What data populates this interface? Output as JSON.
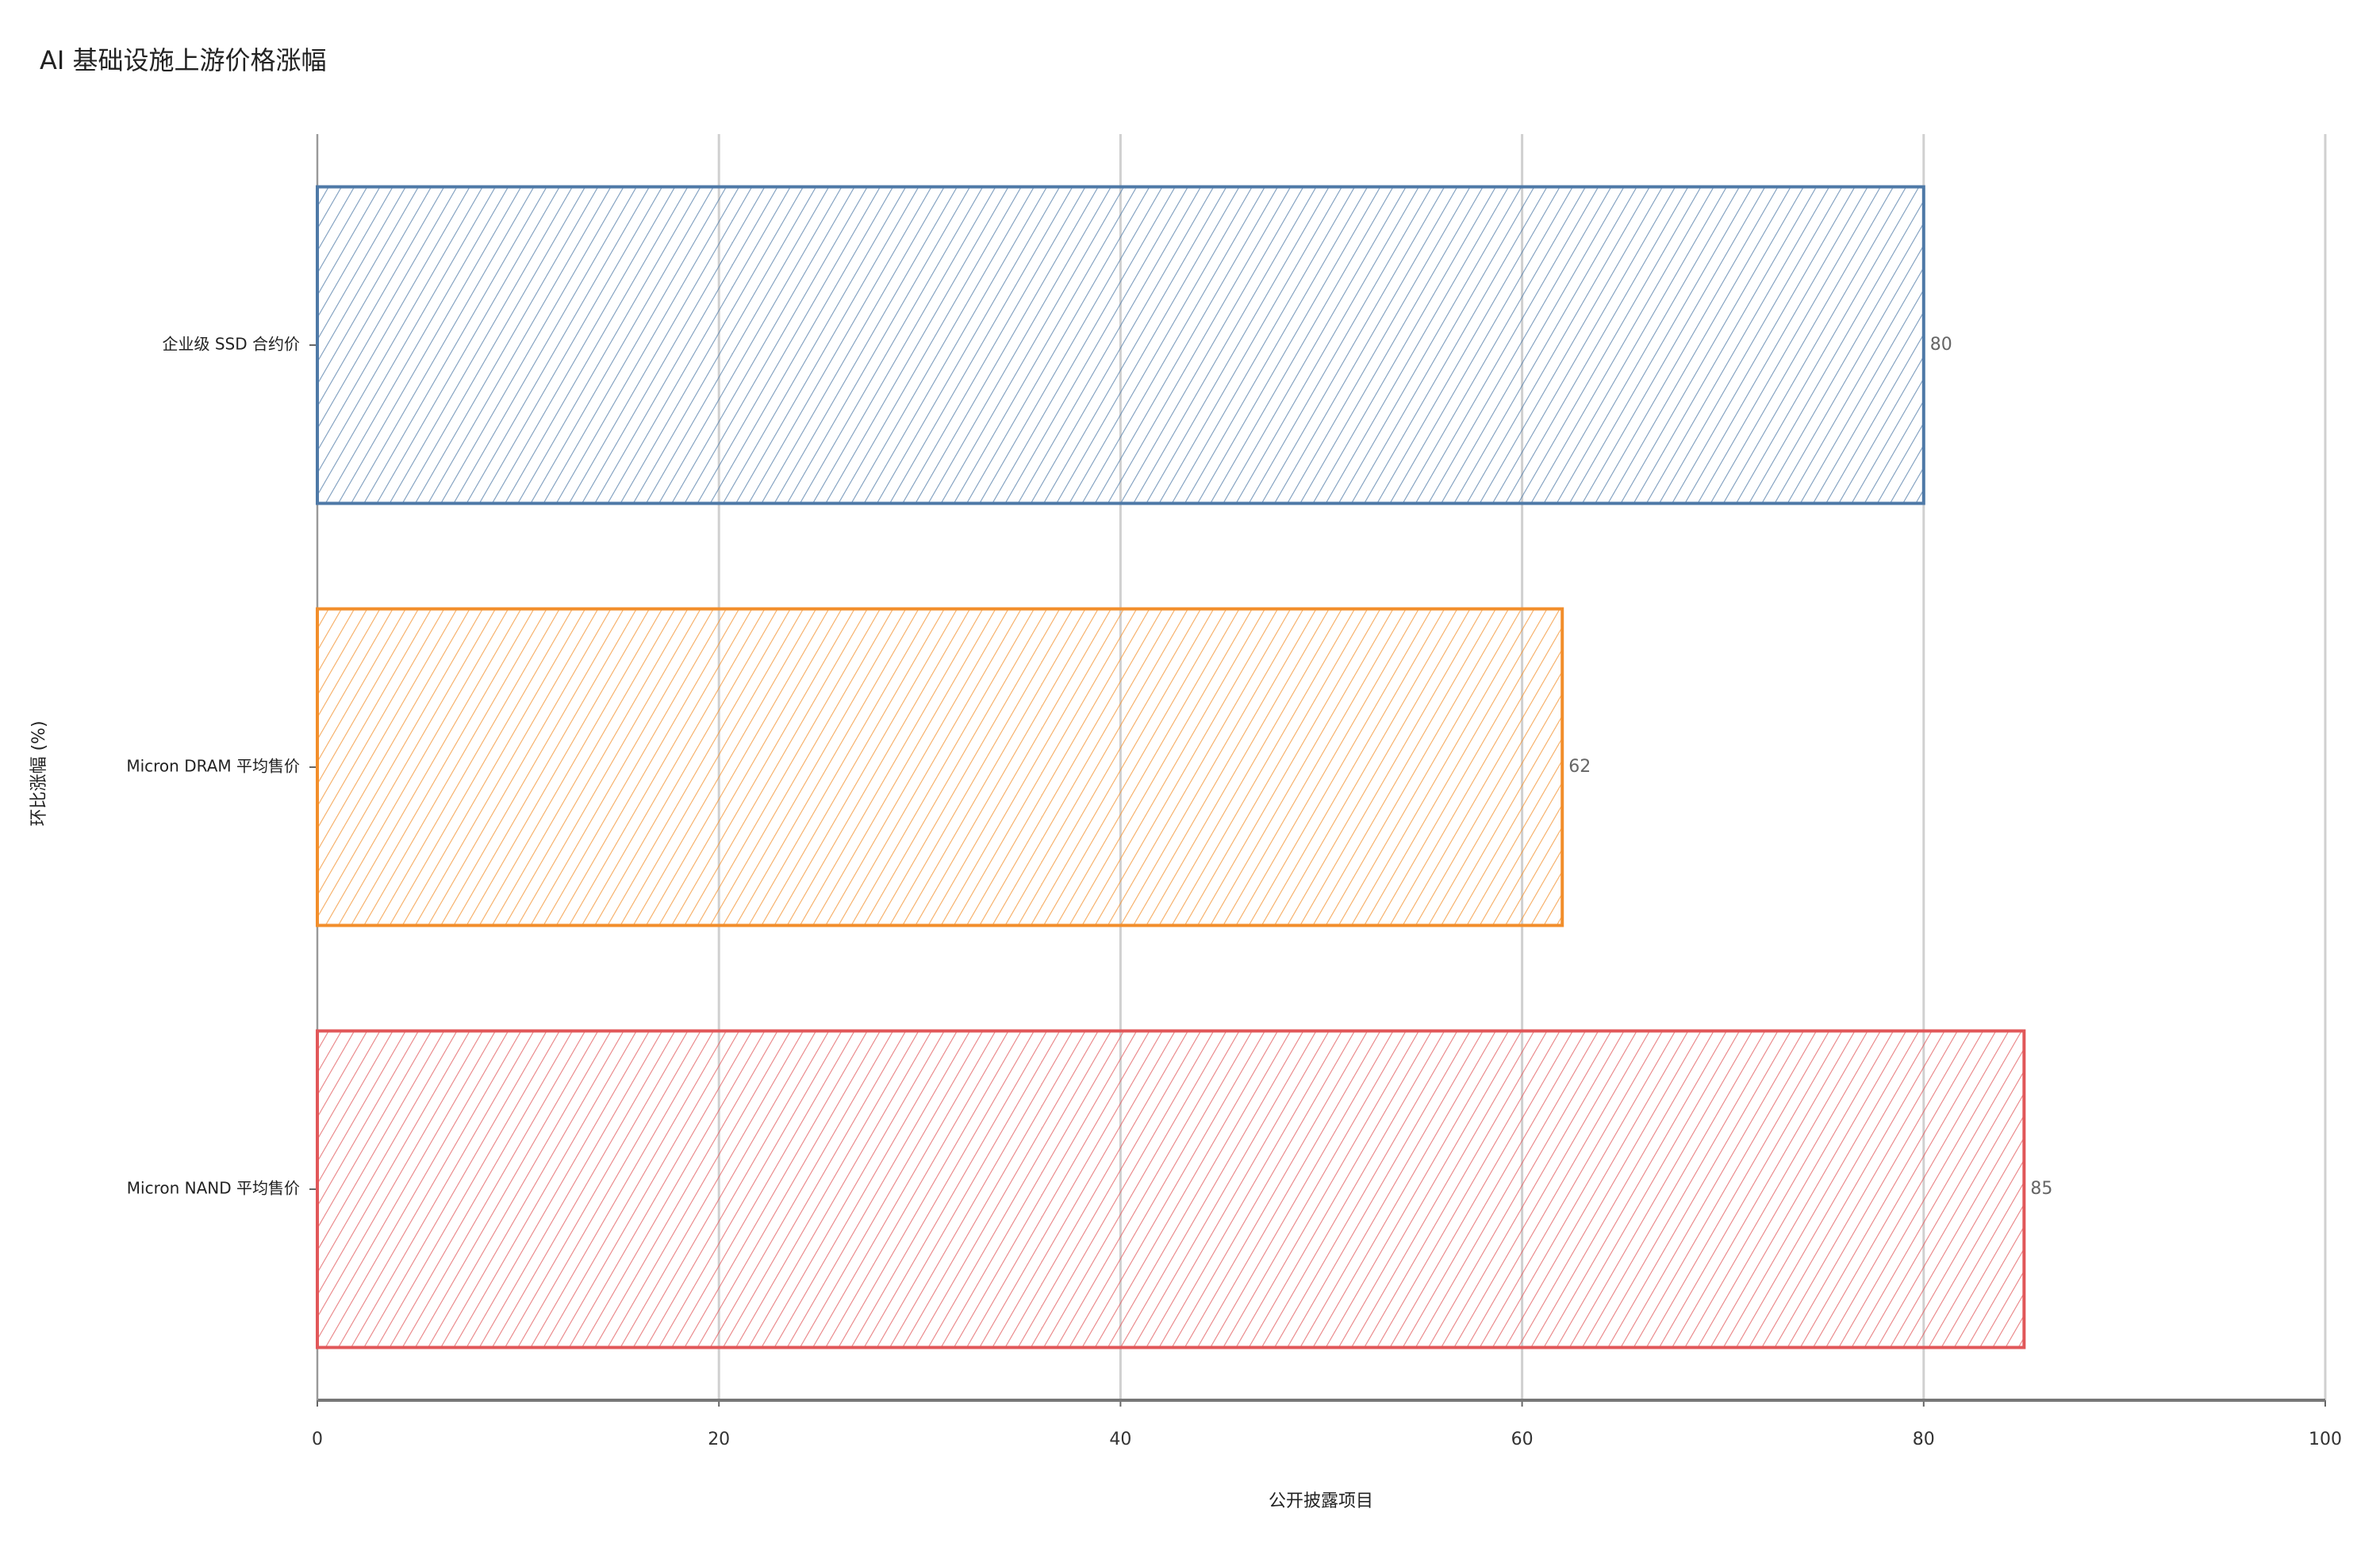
{
  "chart_data": {
    "type": "bar",
    "orientation": "horizontal",
    "title": "AI 基础设施上游价格涨幅",
    "x_label": "公开披露项目",
    "y_label": "环比涨幅 (%)",
    "categories": [
      "企业级 SSD 合约价",
      "Micron DRAM 平均售价",
      "Micron NAND 平均售价"
    ],
    "values": [
      80,
      62,
      85
    ],
    "colors": [
      "#4e79a7",
      "#f28e2b",
      "#e15759"
    ],
    "xlim": [
      0,
      100
    ],
    "xticks": [
      0,
      20,
      40,
      60,
      80,
      100
    ],
    "grid": true
  }
}
